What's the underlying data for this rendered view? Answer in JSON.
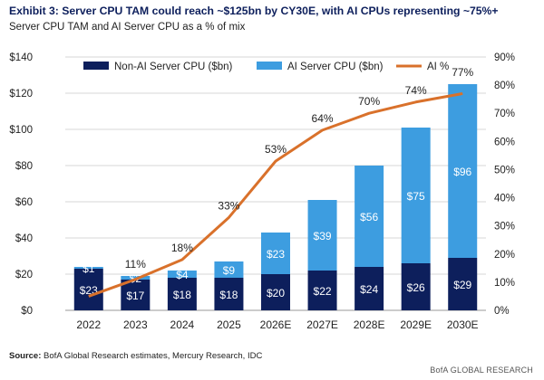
{
  "header": {
    "title": "Exhibit 3: Server CPU TAM could reach ~$125bn by CY30E, with AI CPUs representing ~75%+",
    "subtitle": "Server CPU TAM and AI Server CPU as a % of mix"
  },
  "footer": {
    "source_label": "Source:",
    "source_text": " BofA Global Research estimates, Mercury Research, IDC",
    "brand": "BofA GLOBAL RESEARCH"
  },
  "colors": {
    "non_ai": "#0d1f5c",
    "ai": "#3d9de0",
    "ai_pct": "#d9712b"
  },
  "chart_data": {
    "type": "bar",
    "stacked": true,
    "categories": [
      "2022",
      "2023",
      "2024",
      "2025",
      "2026E",
      "2027E",
      "2028E",
      "2029E",
      "2030E"
    ],
    "series": [
      {
        "name": "Non-AI Server CPU ($bn)",
        "type": "bar",
        "axis": "left",
        "values": [
          23,
          17,
          18,
          18,
          20,
          22,
          24,
          26,
          29
        ],
        "labels": [
          "$23",
          "$17",
          "$18",
          "$18",
          "$20",
          "$22",
          "$24",
          "$26",
          "$29"
        ]
      },
      {
        "name": "AI Server CPU ($bn)",
        "type": "bar",
        "axis": "left",
        "values": [
          1,
          2,
          4,
          9,
          23,
          39,
          56,
          75,
          96
        ],
        "labels": [
          "$1",
          "$2",
          "$4",
          "$9",
          "$23",
          "$39",
          "$56",
          "$75",
          "$96"
        ]
      },
      {
        "name": "AI %",
        "type": "line",
        "axis": "right",
        "values": [
          5,
          11,
          18,
          33,
          53,
          64,
          70,
          74,
          77
        ],
        "labels": [
          "",
          "11%",
          "18%",
          "33%",
          "53%",
          "64%",
          "70%",
          "74%",
          "77%"
        ]
      }
    ],
    "y_left": {
      "min": 0,
      "max": 140,
      "step": 20,
      "tick_labels": [
        "$0",
        "$20",
        "$40",
        "$60",
        "$80",
        "$100",
        "$120",
        "$140"
      ]
    },
    "y_right": {
      "min": 0,
      "max": 90,
      "step": 10,
      "tick_labels": [
        "0%",
        "10%",
        "20%",
        "30%",
        "40%",
        "50%",
        "60%",
        "70%",
        "80%",
        "90%"
      ]
    },
    "grid": "horizontal",
    "legend_position": "top"
  }
}
